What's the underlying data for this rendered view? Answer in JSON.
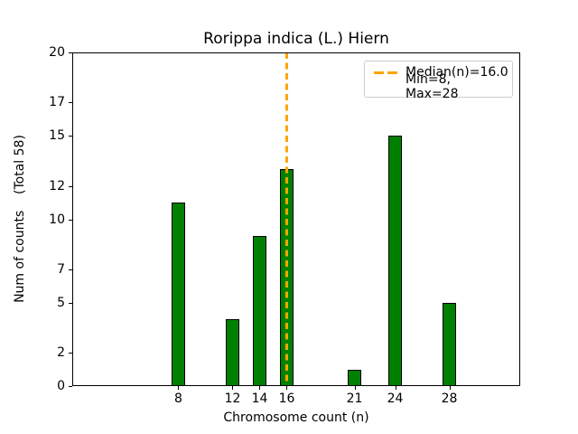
{
  "chart_data": {
    "type": "bar",
    "title": "Rorippa indica (L.) Hiern",
    "xlabel": "Chromosome count (n)",
    "ylabel": "Num of counts    (Total 58)",
    "categories": [
      8,
      12,
      14,
      16,
      21,
      24,
      28
    ],
    "values": [
      11,
      4,
      9,
      13,
      1,
      15,
      5
    ],
    "total": 58,
    "xticks": [
      8,
      12,
      14,
      16,
      21,
      24,
      28
    ],
    "yticks": [
      0,
      2,
      5,
      7,
      10,
      12,
      15,
      17,
      20
    ],
    "xlim": [
      0.17,
      33.23
    ],
    "ylim": [
      0,
      20
    ],
    "bar_width_units": 1.0,
    "bar_color": "#008000",
    "bar_edge_color": "#000000",
    "grid": false,
    "median_line": {
      "x": 16,
      "color": "#FFA500",
      "style": "dashed"
    },
    "legend": {
      "position": "upper right",
      "line_color": "#FFA500",
      "entries": [
        {
          "label": "Median(n)=16.0",
          "has_line_sample": true
        },
        {
          "label": "Min=8, Max=28",
          "has_line_sample": false
        }
      ]
    }
  }
}
